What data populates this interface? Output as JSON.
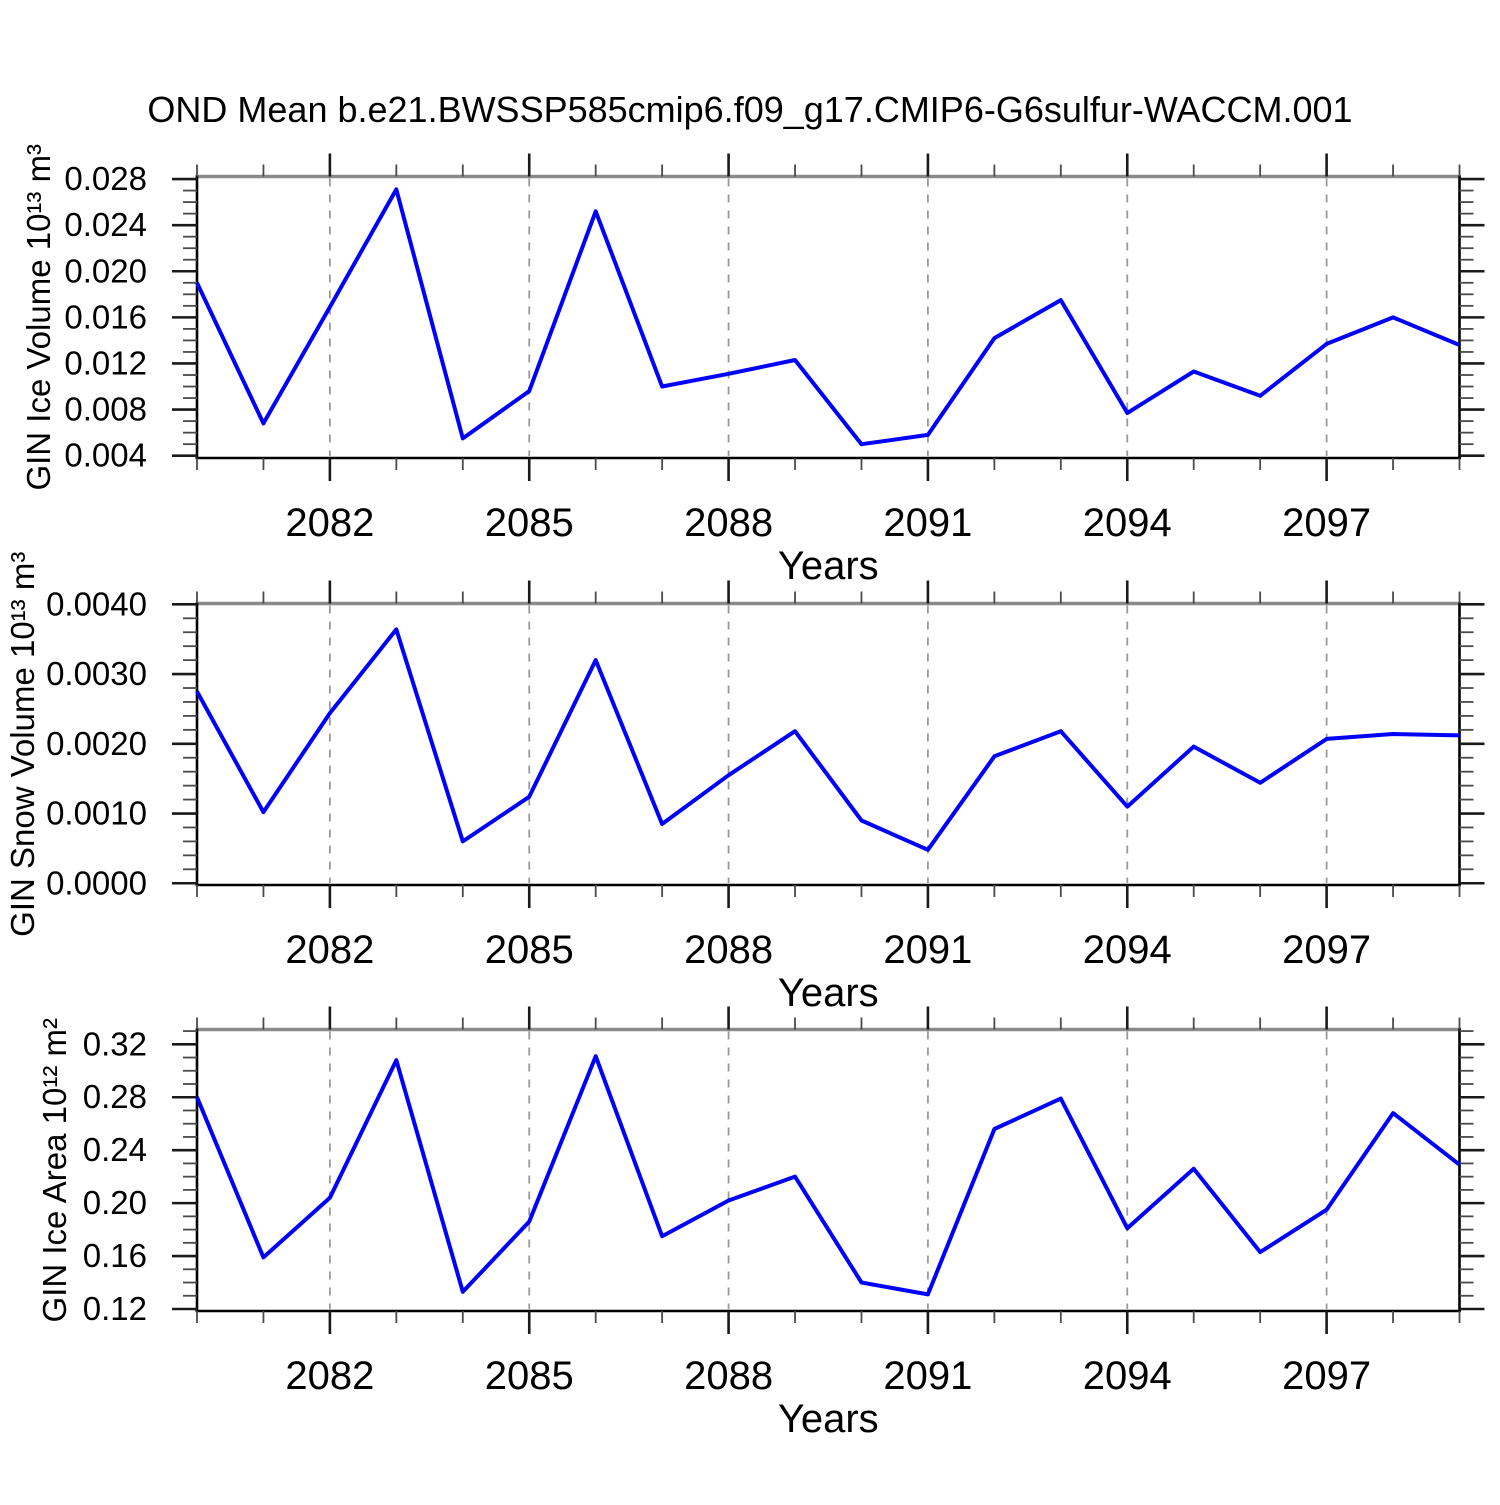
{
  "header": {
    "title": "OND Mean b.e21.BWSSP585cmip6.f09_g17.CMIP6-G6sulfur-WACCM.001"
  },
  "chart_data": [
    {
      "type": "line",
      "name": "GIN Ice Volume",
      "ylabel": "GIN Ice Volume 10¹³ m³",
      "xlabel": "Years",
      "x": [
        2080,
        2081,
        2082,
        2083,
        2084,
        2085,
        2086,
        2087,
        2088,
        2089,
        2090,
        2091,
        2092,
        2093,
        2094,
        2095,
        2096,
        2097,
        2098,
        2099
      ],
      "values": [
        0.019,
        0.0068,
        0.0169,
        0.0271,
        0.0055,
        0.0096,
        0.0252,
        0.01,
        0.0111,
        0.0123,
        0.005,
        0.0058,
        0.0142,
        0.0175,
        0.0077,
        0.0113,
        0.0092,
        0.0137,
        0.016,
        0.0136
      ],
      "xlim": [
        2080,
        2099
      ],
      "ylim": [
        0.0038,
        0.02822
      ],
      "xticks_major": [
        2082,
        2085,
        2088,
        2091,
        2094,
        2097
      ],
      "xtick_minor_step": 1,
      "ytick_values": [
        0.004,
        0.008,
        0.012,
        0.016,
        0.02,
        0.024,
        0.028
      ],
      "ytick_labels": [
        "0.004",
        "0.008",
        "0.012",
        "0.016",
        "0.020",
        "0.024",
        "0.028"
      ],
      "ytick_minor_step": 0.001,
      "grid": "vertical-dashed",
      "legend": "none",
      "line_color": "#0000ff"
    },
    {
      "type": "line",
      "name": "GIN Snow Volume",
      "ylabel": "GIN Snow Volume 10¹³ m³",
      "xlabel": "Years",
      "x": [
        2080,
        2081,
        2082,
        2083,
        2084,
        2085,
        2086,
        2087,
        2088,
        2089,
        2090,
        2091,
        2092,
        2093,
        2094,
        2095,
        2096,
        2097,
        2098,
        2099
      ],
      "values": [
        0.00275,
        0.00102,
        0.00244,
        0.00364,
        0.0006,
        0.00124,
        0.0032,
        0.00085,
        0.00155,
        0.00218,
        0.0009,
        0.00048,
        0.00182,
        0.00218,
        0.0011,
        0.00196,
        0.00144,
        0.00207,
        0.00214,
        0.00212
      ],
      "xlim": [
        2080,
        2099
      ],
      "ylim": [
        -2.5e-05,
        0.004012
      ],
      "xticks_major": [
        2082,
        2085,
        2088,
        2091,
        2094,
        2097
      ],
      "xtick_minor_step": 1,
      "ytick_values": [
        0.0,
        0.001,
        0.002,
        0.003,
        0.004
      ],
      "ytick_labels": [
        "0.0000",
        "0.0010",
        "0.0020",
        "0.0030",
        "0.0040"
      ],
      "ytick_minor_step": 0.0002,
      "grid": "vertical-dashed",
      "legend": "none",
      "line_color": "#0000ff"
    },
    {
      "type": "line",
      "name": "GIN Ice Area",
      "ylabel": "GIN Ice Area 10¹² m²",
      "xlabel": "Years",
      "x": [
        2080,
        2081,
        2082,
        2083,
        2084,
        2085,
        2086,
        2087,
        2088,
        2089,
        2090,
        2091,
        2092,
        2093,
        2094,
        2095,
        2096,
        2097,
        2098,
        2099
      ],
      "values": [
        0.28,
        0.159,
        0.204,
        0.308,
        0.133,
        0.186,
        0.311,
        0.175,
        0.202,
        0.22,
        0.14,
        0.131,
        0.256,
        0.279,
        0.181,
        0.226,
        0.163,
        0.195,
        0.268,
        0.229
      ],
      "xlim": [
        2080,
        2099
      ],
      "ylim": [
        0.11849,
        0.33118
      ],
      "xticks_major": [
        2082,
        2085,
        2088,
        2091,
        2094,
        2097
      ],
      "xtick_minor_step": 1,
      "ytick_values": [
        0.12,
        0.16,
        0.2,
        0.24,
        0.28,
        0.32
      ],
      "ytick_labels": [
        "0.12",
        "0.16",
        "0.20",
        "0.24",
        "0.28",
        "0.32"
      ],
      "ytick_minor_step": 0.01,
      "grid": "vertical-dashed",
      "legend": "none",
      "line_color": "#0000ff"
    }
  ]
}
